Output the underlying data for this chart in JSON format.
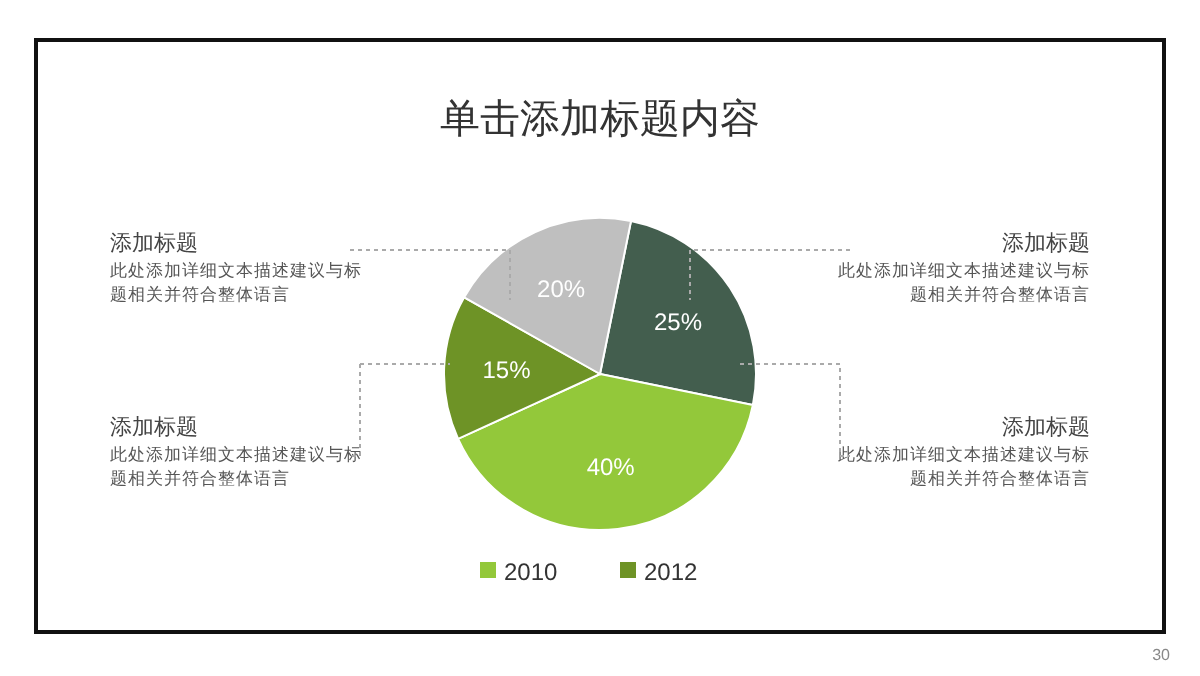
{
  "chart_data": {
    "type": "pie",
    "title": "单击添加标题内容",
    "categories": [
      null,
      "2010",
      "2012",
      null
    ],
    "values": [
      25,
      40,
      15,
      20
    ],
    "colors": [
      "#435e4e",
      "#93c83a",
      "#6e9326",
      "#bfbfbf"
    ],
    "value_labels": [
      "25%",
      "40%",
      "15%",
      "20%"
    ],
    "legend": "bottom",
    "annotations": [
      "添加标题",
      "此处添加详细文本描述建议与标题相关并符合整体语言",
      "添加标题",
      "此处添加详细文本描述建议与标题相关并符合整体语言",
      "添加标题",
      "此处添加详细文本描述建议与标题相关并符合整体语言",
      "添加标题",
      "此处添加详细文本描述建议与标题相关并符合整体语言",
      "30"
    ]
  }
}
